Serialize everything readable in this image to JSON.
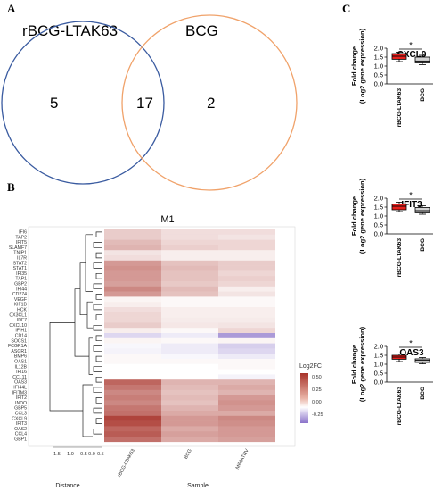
{
  "panels": {
    "a": {
      "letter": "A",
      "venn": {
        "left_label": "rBCG-LTAK63",
        "right_label": "BCG",
        "left_only": "5",
        "overlap": "17",
        "right_only": "2",
        "left_color": "#3a5ba0",
        "right_color": "#f0a26a"
      }
    },
    "b": {
      "letter": "B",
      "title": "M1",
      "xlabel": "Sample",
      "dendro_label": "Distance",
      "dendro_ticks": [
        "1.5",
        "1.0",
        "0.5",
        "0.0",
        "-0.5"
      ],
      "legend_title": "Log2FC",
      "legend_ticks": [
        "0.50",
        "0.25",
        "0.00",
        "-0.25"
      ],
      "genes": [
        "IFI6",
        "TAP2",
        "IFIT5",
        "SLAMF7",
        "TNIP1",
        "IL7R",
        "STAT2",
        "STAT1",
        "IFI35",
        "TAP1",
        "GBP2",
        "IFI44",
        "CD274",
        "VEGF",
        "KIF1B",
        "HCK",
        "CX3CL1",
        "IRF7",
        "CXCL10",
        "IFIH1",
        "CD14",
        "SOCS1",
        "FCGR1A",
        "ASGR1",
        "BMP6",
        "OAS1",
        "IL12B",
        "IFI16",
        "CCL11",
        "OAS3",
        "IFI44L",
        "IFITM3",
        "IFIT2",
        "INDO",
        "GBP5",
        "CCL3",
        "CXCL9",
        "IFIT3",
        "OAS2",
        "CCL4",
        "GBP1"
      ],
      "samples": [
        "rBCG-LTAK63",
        "BCG",
        "M6dATRV"
      ]
    },
    "c": {
      "letter": "C",
      "ylabel_line1": "Fold change",
      "ylabel_line2": "(Log2 gene expression)",
      "categories": [
        "rBCG-LTAK63",
        "BCG"
      ],
      "significance": "*",
      "colors": {
        "rbcg": "#e8211d",
        "bcg": "#d3d3d3"
      },
      "plots": [
        {
          "title": "CXCL9",
          "yticks": [
            "2.0",
            "1.5",
            "1.0",
            "0.5",
            "0.0"
          ]
        },
        {
          "title": "IFIT3",
          "yticks": [
            "2.0",
            "1.5",
            "1.0",
            "0.5",
            "0.0"
          ]
        },
        {
          "title": "OAS3",
          "yticks": [
            "2.0",
            "1.5",
            "1.0",
            "0.5",
            "0.0"
          ]
        }
      ]
    }
  },
  "chart_data": [
    {
      "type": "heatmap",
      "title": "M1",
      "xlabel": "Sample",
      "legend_title": "Log2FC",
      "color_range": [
        -0.35,
        0.6
      ],
      "columns": [
        "rBCG-LTAK63",
        "BCG",
        "M6dATRV"
      ],
      "rows": [
        "IFI6",
        "TAP2",
        "IFIT5",
        "SLAMF7",
        "TNIP1",
        "IL7R",
        "STAT2",
        "STAT1",
        "IFI35",
        "TAP1",
        "GBP2",
        "IFI44",
        "CD274",
        "VEGF",
        "KIF1B",
        "HCK",
        "CX3CL1",
        "IRF7",
        "CXCL10",
        "IFIH1",
        "CD14",
        "SOCS1",
        "FCGR1A",
        "ASGR1",
        "BMP6",
        "OAS1",
        "IL12B",
        "IFI16",
        "CCL11",
        "OAS3",
        "IFI44L",
        "IFITM3",
        "IFIT2",
        "INDO",
        "GBP5",
        "CCL3",
        "CXCL9",
        "IFIT3",
        "OAS2",
        "CCL4",
        "GBP1"
      ],
      "values": [
        [
          0.15,
          0.1,
          0.1
        ],
        [
          0.15,
          0.1,
          0.08
        ],
        [
          0.2,
          0.12,
          0.12
        ],
        [
          0.22,
          0.14,
          0.12
        ],
        [
          0.08,
          0.05,
          0.05
        ],
        [
          0.1,
          0.05,
          0.05
        ],
        [
          0.3,
          0.18,
          0.15
        ],
        [
          0.32,
          0.2,
          0.15
        ],
        [
          0.3,
          0.18,
          0.12
        ],
        [
          0.3,
          0.18,
          0.14
        ],
        [
          0.28,
          0.16,
          0.12
        ],
        [
          0.35,
          0.2,
          0.05
        ],
        [
          0.3,
          0.18,
          0.08
        ],
        [
          0.03,
          0.02,
          0.02
        ],
        [
          0.05,
          0.02,
          0.02
        ],
        [
          0.1,
          0.05,
          0.05
        ],
        [
          0.12,
          0.05,
          0.05
        ],
        [
          0.12,
          0.06,
          0.06
        ],
        [
          0.15,
          0.07,
          0.08
        ],
        [
          0.05,
          0.02,
          0.12
        ],
        [
          -0.1,
          -0.05,
          -0.25
        ],
        [
          0.03,
          0.02,
          0.03
        ],
        [
          -0.02,
          -0.05,
          -0.12
        ],
        [
          -0.03,
          -0.05,
          -0.1
        ],
        [
          0.02,
          -0.02,
          -0.05
        ],
        [
          0.02,
          0.02,
          0.02
        ],
        [
          0.0,
          0.0,
          0.02
        ],
        [
          0.0,
          0.0,
          0.0
        ],
        [
          0.0,
          0.0,
          -0.03
        ],
        [
          0.45,
          0.22,
          0.22
        ],
        [
          0.4,
          0.2,
          0.25
        ],
        [
          0.35,
          0.18,
          0.22
        ],
        [
          0.38,
          0.2,
          0.3
        ],
        [
          0.35,
          0.18,
          0.32
        ],
        [
          0.4,
          0.22,
          0.3
        ],
        [
          0.42,
          0.25,
          0.25
        ],
        [
          0.55,
          0.3,
          0.35
        ],
        [
          0.52,
          0.3,
          0.33
        ],
        [
          0.45,
          0.25,
          0.3
        ],
        [
          0.48,
          0.28,
          0.3
        ],
        [
          0.42,
          0.25,
          0.28
        ]
      ]
    },
    {
      "type": "box",
      "title": "CXCL9",
      "categories": [
        "rBCG-LTAK63",
        "BCG"
      ],
      "ylabel": "Fold change (Log2 gene expression)",
      "ylim": [
        0,
        2
      ],
      "series": [
        {
          "name": "rBCG-LTAK63",
          "min": 1.25,
          "q1": 1.38,
          "median": 1.55,
          "q3": 1.7,
          "max": 1.78
        },
        {
          "name": "BCG",
          "min": 1.08,
          "q1": 1.18,
          "median": 1.28,
          "q3": 1.5,
          "max": 1.6
        }
      ]
    },
    {
      "type": "box",
      "title": "IFIT3",
      "categories": [
        "rBCG-LTAK63",
        "BCG"
      ],
      "ylabel": "Fold change (Log2 gene expression)",
      "ylim": [
        0,
        2
      ],
      "series": [
        {
          "name": "rBCG-LTAK63",
          "min": 1.25,
          "q1": 1.35,
          "median": 1.55,
          "q3": 1.68,
          "max": 1.78
        },
        {
          "name": "BCG",
          "min": 1.1,
          "q1": 1.18,
          "median": 1.3,
          "q3": 1.48,
          "max": 1.58
        }
      ]
    },
    {
      "type": "box",
      "title": "OAS3",
      "categories": [
        "rBCG-LTAK63",
        "BCG"
      ],
      "ylabel": "Fold change (Log2 gene expression)",
      "ylim": [
        0,
        2
      ],
      "series": [
        {
          "name": "rBCG-LTAK63",
          "min": 1.15,
          "q1": 1.28,
          "median": 1.4,
          "q3": 1.5,
          "max": 1.58
        },
        {
          "name": "BCG",
          "min": 1.02,
          "q1": 1.1,
          "median": 1.22,
          "q3": 1.3,
          "max": 1.38
        }
      ]
    }
  ]
}
